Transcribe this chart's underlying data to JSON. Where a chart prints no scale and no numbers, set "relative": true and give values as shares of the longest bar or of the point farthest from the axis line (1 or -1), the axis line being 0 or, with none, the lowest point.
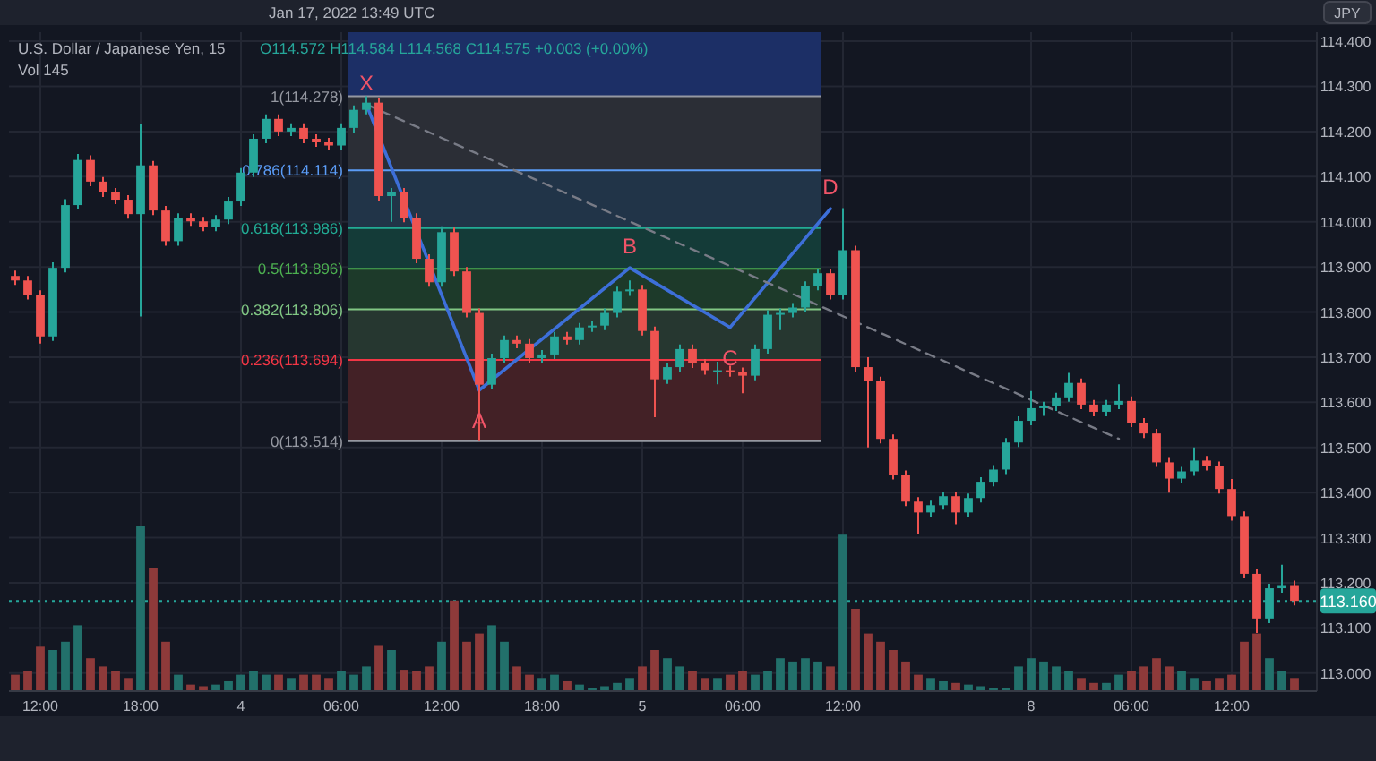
{
  "chart_data": [
    {
      "type": "candlestick",
      "title": "U.S. Dollar / Japanese Yen, 15",
      "subtitle": "O114.572 H114.584 L114.568 C114.575 +0.003 (+0.00%)",
      "categories": [
        null,
        null,
        "12:00",
        null,
        null,
        null,
        null,
        null,
        null,
        null,
        "18:00",
        null,
        null,
        null,
        null,
        null,
        null,
        null,
        "4",
        null,
        null,
        null,
        null,
        null,
        null,
        null,
        "06:00",
        null,
        null,
        null,
        null,
        null,
        null,
        null,
        "12:00",
        null,
        null,
        null,
        null,
        null,
        null,
        null,
        "18:00",
        null,
        null,
        null,
        null,
        null,
        null,
        null,
        "5",
        null,
        null,
        null,
        null,
        null,
        null,
        null,
        "06:00",
        null,
        null,
        null,
        null,
        null,
        null,
        null,
        "12:00",
        null,
        null,
        null,
        null,
        null,
        null,
        null,
        null,
        null,
        null,
        null,
        null,
        null,
        null,
        "8",
        null,
        null,
        null,
        null,
        null,
        null,
        null,
        "06:00",
        null,
        null,
        null,
        null,
        null,
        null,
        null,
        "12:00",
        null,
        null,
        null,
        null,
        null
      ],
      "ohlc": [
        [
          113.88,
          113.892,
          113.86,
          113.87
        ],
        [
          113.87,
          113.88,
          113.828,
          113.838
        ],
        [
          113.838,
          113.848,
          113.73,
          113.746
        ],
        [
          113.746,
          113.91,
          113.736,
          113.898
        ],
        [
          113.898,
          114.05,
          113.888,
          114.037
        ],
        [
          114.037,
          114.15,
          114.027,
          114.137
        ],
        [
          114.137,
          114.147,
          114.079,
          114.089
        ],
        [
          114.089,
          114.099,
          114.055,
          114.065
        ],
        [
          114.065,
          114.075,
          114.039,
          114.049
        ],
        [
          114.049,
          114.059,
          114.007,
          114.017
        ],
        [
          114.017,
          114.216,
          113.79,
          114.125
        ],
        [
          114.125,
          114.135,
          114.015,
          114.025
        ],
        [
          114.025,
          114.035,
          113.947,
          113.957
        ],
        [
          113.957,
          114.019,
          113.947,
          114.009
        ],
        [
          114.009,
          114.019,
          113.991,
          114.001
        ],
        [
          114.001,
          114.011,
          113.979,
          113.989
        ],
        [
          113.989,
          114.015,
          113.979,
          114.005
        ],
        [
          114.005,
          114.055,
          113.995,
          114.045
        ],
        [
          114.045,
          114.119,
          114.035,
          114.109
        ],
        [
          114.109,
          114.194,
          114.099,
          114.184
        ],
        [
          114.184,
          114.238,
          114.174,
          114.228
        ],
        [
          114.228,
          114.238,
          114.19,
          114.2
        ],
        [
          114.2,
          114.218,
          114.19,
          114.208
        ],
        [
          114.208,
          114.218,
          114.174,
          114.184
        ],
        [
          114.184,
          114.194,
          114.166,
          114.176
        ],
        [
          114.176,
          114.186,
          114.159,
          114.169
        ],
        [
          114.169,
          114.218,
          114.159,
          114.208
        ],
        [
          114.208,
          114.258,
          114.198,
          114.248
        ],
        [
          114.248,
          114.278,
          114.238,
          114.264
        ],
        [
          114.264,
          114.274,
          114.047,
          114.057
        ],
        [
          114.057,
          114.075,
          114.0,
          114.065
        ],
        [
          114.065,
          114.075,
          113.999,
          114.009
        ],
        [
          114.009,
          114.019,
          113.908,
          113.918
        ],
        [
          113.918,
          113.928,
          113.856,
          113.866
        ],
        [
          113.866,
          113.99,
          113.856,
          113.977
        ],
        [
          113.977,
          113.987,
          113.88,
          113.89
        ],
        [
          113.89,
          113.9,
          113.788,
          113.798
        ],
        [
          113.798,
          113.808,
          113.514,
          113.639
        ],
        [
          113.639,
          113.708,
          113.629,
          113.698
        ],
        [
          113.698,
          113.748,
          113.688,
          113.738
        ],
        [
          113.738,
          113.748,
          113.72,
          113.73
        ],
        [
          113.73,
          113.74,
          113.688,
          113.698
        ],
        [
          113.698,
          113.716,
          113.688,
          113.706
        ],
        [
          113.706,
          113.756,
          113.696,
          113.746
        ],
        [
          113.746,
          113.756,
          113.728,
          113.738
        ],
        [
          113.738,
          113.776,
          113.728,
          113.766
        ],
        [
          113.766,
          113.78,
          113.756,
          113.77
        ],
        [
          113.77,
          113.808,
          113.76,
          113.798
        ],
        [
          113.798,
          113.856,
          113.788,
          113.846
        ],
        [
          113.846,
          113.87,
          113.836,
          113.85
        ],
        [
          113.85,
          113.86,
          113.748,
          113.758
        ],
        [
          113.758,
          113.768,
          113.567,
          113.651
        ],
        [
          113.651,
          113.688,
          113.641,
          113.678
        ],
        [
          113.678,
          113.728,
          113.668,
          113.718
        ],
        [
          113.718,
          113.728,
          113.676,
          113.686
        ],
        [
          113.686,
          113.696,
          113.661,
          113.671
        ],
        [
          113.671,
          113.69,
          113.64,
          113.671
        ],
        [
          113.671,
          113.681,
          113.657,
          113.667
        ],
        [
          113.667,
          113.677,
          113.62,
          113.659
        ],
        [
          113.659,
          113.728,
          113.649,
          113.718
        ],
        [
          113.718,
          113.804,
          113.708,
          113.794
        ],
        [
          113.794,
          113.808,
          113.76,
          113.798
        ],
        [
          113.798,
          113.82,
          113.788,
          113.81
        ],
        [
          113.81,
          113.868,
          113.8,
          113.858
        ],
        [
          113.858,
          113.896,
          113.848,
          113.886
        ],
        [
          113.886,
          113.896,
          113.828,
          113.838
        ],
        [
          113.838,
          114.03,
          113.828,
          113.937
        ],
        [
          113.937,
          113.947,
          113.668,
          113.678
        ],
        [
          113.678,
          113.7,
          113.5,
          113.647
        ],
        [
          113.647,
          113.657,
          113.509,
          113.519
        ],
        [
          113.519,
          113.529,
          113.429,
          113.439
        ],
        [
          113.439,
          113.449,
          113.37,
          113.38
        ],
        [
          113.38,
          113.39,
          113.308,
          113.356
        ],
        [
          113.356,
          113.382,
          113.346,
          113.372
        ],
        [
          113.372,
          113.402,
          113.362,
          113.392
        ],
        [
          113.392,
          113.402,
          113.33,
          113.356
        ],
        [
          113.356,
          113.398,
          113.346,
          113.388
        ],
        [
          113.388,
          113.434,
          113.378,
          113.424
        ],
        [
          113.424,
          113.461,
          113.414,
          113.451
        ],
        [
          113.451,
          113.521,
          113.441,
          113.511
        ],
        [
          113.511,
          113.569,
          113.501,
          113.559
        ],
        [
          113.559,
          113.625,
          113.549,
          113.587
        ],
        [
          113.587,
          113.601,
          113.57,
          113.591
        ],
        [
          113.591,
          113.621,
          113.581,
          113.611
        ],
        [
          113.611,
          113.665,
          113.601,
          113.643
        ],
        [
          113.643,
          113.653,
          113.585,
          113.595
        ],
        [
          113.595,
          113.605,
          113.569,
          113.579
        ],
        [
          113.579,
          113.605,
          113.569,
          113.595
        ],
        [
          113.595,
          113.64,
          113.585,
          113.603
        ],
        [
          113.603,
          113.613,
          113.545,
          113.555
        ],
        [
          113.555,
          113.565,
          113.521,
          113.531
        ],
        [
          113.531,
          113.541,
          113.457,
          113.467
        ],
        [
          113.467,
          113.477,
          113.4,
          113.431
        ],
        [
          113.431,
          113.457,
          113.421,
          113.447
        ],
        [
          113.447,
          113.5,
          113.437,
          113.471
        ],
        [
          113.471,
          113.481,
          113.449,
          113.459
        ],
        [
          113.459,
          113.469,
          113.398,
          113.408
        ],
        [
          113.408,
          113.43,
          113.338,
          113.348
        ],
        [
          113.348,
          113.358,
          113.21,
          113.22
        ],
        [
          113.22,
          113.23,
          113.089,
          113.121
        ],
        [
          113.121,
          113.198,
          113.111,
          113.188
        ],
        [
          113.188,
          113.24,
          113.178,
          113.195
        ],
        [
          113.195,
          113.205,
          113.15,
          113.16
        ]
      ],
      "colors": [
        "#ef5350",
        "#ef5350",
        "#ef5350",
        "#26a69a",
        "#26a69a",
        "#26a69a",
        "#ef5350",
        "#ef5350",
        "#ef5350",
        "#ef5350",
        "#26a69a",
        "#ef5350",
        "#ef5350",
        "#26a69a",
        "#ef5350",
        "#ef5350",
        "#26a69a",
        "#26a69a",
        "#26a69a",
        "#26a69a",
        "#26a69a",
        "#ef5350",
        "#26a69a",
        "#ef5350",
        "#ef5350",
        "#ef5350",
        "#26a69a",
        "#26a69a",
        "#26a69a",
        "#ef5350",
        "#26a69a",
        "#ef5350",
        "#ef5350",
        "#ef5350",
        "#26a69a",
        "#ef5350",
        "#ef5350",
        "#ef5350",
        "#26a69a",
        "#26a69a",
        "#ef5350",
        "#ef5350",
        "#26a69a",
        "#26a69a",
        "#ef5350",
        "#26a69a",
        "#26a69a",
        "#26a69a",
        "#26a69a",
        "#26a69a",
        "#ef5350",
        "#ef5350",
        "#26a69a",
        "#26a69a",
        "#ef5350",
        "#ef5350",
        "#26a69a",
        "#ef5350",
        "#ef5350",
        "#26a69a",
        "#26a69a",
        "#26a69a",
        "#26a69a",
        "#26a69a",
        "#26a69a",
        "#ef5350",
        "#26a69a",
        "#ef5350",
        "#ef5350",
        "#ef5350",
        "#ef5350",
        "#ef5350",
        "#ef5350",
        "#26a69a",
        "#26a69a",
        "#ef5350",
        "#26a69a",
        "#26a69a",
        "#26a69a",
        "#26a69a",
        "#26a69a",
        "#26a69a",
        "#26a69a",
        "#26a69a",
        "#26a69a",
        "#ef5350",
        "#ef5350",
        "#26a69a",
        "#26a69a",
        "#ef5350",
        "#ef5350",
        "#ef5350",
        "#ef5350",
        "#26a69a",
        "#26a69a",
        "#ef5350",
        "#ef5350",
        "#ef5350",
        "#ef5350",
        "#ef5350",
        "#26a69a",
        "#26a69a",
        "#ef5350"
      ],
      "ylim": [
        112.96,
        114.42
      ],
      "yticks": [
        {
          "value": 113,
          "label": "113.000"
        },
        {
          "value": 113.1,
          "label": "113.100"
        },
        {
          "value": 113.2,
          "label": "113.200"
        },
        {
          "value": 113.3,
          "label": "113.300"
        },
        {
          "value": 113.4,
          "label": "113.400"
        },
        {
          "value": 113.5,
          "label": "113.500"
        },
        {
          "value": 113.6,
          "label": "113.600"
        },
        {
          "value": 113.7,
          "label": "113.700"
        },
        {
          "value": 113.8,
          "label": "113.800"
        },
        {
          "value": 113.9,
          "label": "113.900"
        },
        {
          "value": 114,
          "label": "114.000"
        },
        {
          "value": 114.1,
          "label": "114.100"
        },
        {
          "value": 114.2,
          "label": "114.200"
        },
        {
          "value": 114.3,
          "label": "114.300"
        },
        {
          "value": 114.4,
          "label": "114.400"
        }
      ],
      "grid": true,
      "series": [
        {
          "type": "line",
          "color": "#3d6fd9",
          "line_style": "solid",
          "values": [
            null,
            null,
            null,
            null,
            null,
            null,
            null,
            null,
            null,
            null,
            null,
            null,
            null,
            null,
            null,
            null,
            null,
            null,
            null,
            null,
            null,
            null,
            null,
            null,
            null,
            null,
            null,
            null,
            114.26,
            null,
            null,
            null,
            null,
            null,
            null,
            null,
            null,
            113.627,
            null,
            null,
            null,
            null,
            null,
            null,
            null,
            null,
            null,
            null,
            null,
            113.898,
            null,
            null,
            null,
            null,
            null,
            null,
            null,
            113.766,
            null,
            null,
            null,
            null,
            null,
            null,
            null,
            114.029,
            null,
            null,
            null,
            null,
            null,
            null,
            null,
            null,
            null,
            null,
            null,
            null,
            null,
            null,
            null,
            null,
            null,
            null,
            null,
            null,
            null,
            null,
            null,
            null,
            null,
            null,
            null,
            null,
            null,
            null,
            null,
            null,
            null,
            null,
            null,
            null,
            null
          ]
        },
        {
          "type": "line",
          "color": "#787b86",
          "line_style": "dashed",
          "values": [
            null,
            null,
            null,
            null,
            null,
            null,
            null,
            null,
            null,
            null,
            null,
            null,
            null,
            null,
            null,
            null,
            null,
            null,
            null,
            null,
            null,
            null,
            null,
            null,
            null,
            null,
            null,
            null,
            114.26,
            null,
            null,
            null,
            null,
            null,
            null,
            null,
            null,
            null,
            null,
            null,
            null,
            null,
            null,
            null,
            null,
            null,
            null,
            null,
            null,
            null,
            null,
            null,
            null,
            null,
            null,
            null,
            null,
            null,
            null,
            null,
            null,
            null,
            null,
            null,
            null,
            null,
            null,
            null,
            null,
            null,
            null,
            null,
            null,
            null,
            null,
            null,
            null,
            null,
            null,
            null,
            null,
            null,
            null,
            null,
            null,
            null,
            null,
            null,
            113.519,
            null,
            null,
            null,
            null,
            null,
            null,
            null,
            null,
            null,
            null,
            null,
            null,
            null,
            null
          ]
        }
      ],
      "bands": [
        {
          "axis": "y",
          "from": 114.278,
          "to": 114.42,
          "color": "#1c2f66"
        },
        {
          "axis": "y",
          "from": 114.114,
          "to": 114.278,
          "color": "#2b2e36"
        },
        {
          "axis": "y",
          "from": 113.986,
          "to": 114.114,
          "color": "#213448"
        },
        {
          "axis": "y",
          "from": 113.896,
          "to": 113.986,
          "color": "#143b38"
        },
        {
          "axis": "y",
          "from": 113.806,
          "to": 113.896,
          "color": "#1d3a2a"
        },
        {
          "axis": "y",
          "from": 113.694,
          "to": 113.806,
          "color": "#263730"
        },
        {
          "axis": "y",
          "from": 113.514,
          "to": 113.694,
          "color": "#432126"
        }
      ],
      "ref_lines": [
        {
          "axis": "y",
          "value": 114.278,
          "label": "1(114.278)",
          "color": "#9598a1",
          "line_style": "solid"
        },
        {
          "axis": "y",
          "value": 114.114,
          "label": "0.786(114.114)",
          "color": "#5b9cf6",
          "line_style": "solid"
        },
        {
          "axis": "y",
          "value": 113.986,
          "label": "0.618(113.986)",
          "color": "#22ab94",
          "line_style": "solid"
        },
        {
          "axis": "y",
          "value": 113.896,
          "label": "0.5(113.896)",
          "color": "#4caf50",
          "line_style": "solid"
        },
        {
          "axis": "y",
          "value": 113.806,
          "label": "0.382(113.806)",
          "color": "#81c784",
          "line_style": "solid"
        },
        {
          "axis": "y",
          "value": 113.694,
          "label": "0.236(113.694)",
          "color": "#f23645",
          "line_style": "solid"
        },
        {
          "axis": "y",
          "value": 113.514,
          "label": "0(113.514)",
          "color": "#9598a1",
          "line_style": "solid"
        },
        {
          "axis": "y",
          "value": 113.16,
          "label": "113.160",
          "color": "#26a69a",
          "line_style": "dotted"
        }
      ],
      "annotations": [
        "Jan 17, 2022 13:49 UTC",
        "JPY",
        {
          "text": "X",
          "y": 114.26
        },
        {
          "text": "A",
          "y": 113.627
        },
        {
          "text": "B",
          "y": 113.898
        },
        {
          "text": "C",
          "y": 113.766
        },
        {
          "text": "D",
          "y": 114.029
        }
      ]
    },
    {
      "type": "bar",
      "relative": true,
      "annotations": [
        "Vol 145"
      ],
      "categories": [
        null,
        null,
        null,
        null,
        null,
        null,
        null,
        null,
        null,
        null,
        null,
        null,
        null,
        null,
        null,
        null,
        null,
        null,
        null,
        null,
        null,
        null,
        null,
        null,
        null,
        null,
        null,
        null,
        null,
        null,
        null,
        null,
        null,
        null,
        null,
        null,
        null,
        null,
        null,
        null,
        null,
        null,
        null,
        null,
        null,
        null,
        null,
        null,
        null,
        null,
        null,
        null,
        null,
        null,
        null,
        null,
        null,
        null,
        null,
        null,
        null,
        null,
        null,
        null,
        null,
        null,
        null,
        null,
        null,
        null,
        null,
        null,
        null,
        null,
        null,
        null,
        null,
        null,
        null,
        null,
        null,
        null,
        null,
        null,
        null,
        null,
        null,
        null,
        null,
        null,
        null,
        null,
        null,
        null,
        null,
        null,
        null,
        null,
        null,
        null,
        null,
        null,
        null
      ],
      "values": [
        0.1,
        0.12,
        0.27,
        0.25,
        0.3,
        0.4,
        0.2,
        0.15,
        0.12,
        0.08,
        1,
        0.75,
        0.3,
        0.1,
        0.04,
        0.03,
        0.04,
        0.06,
        0.1,
        0.12,
        0.1,
        0.1,
        0.08,
        0.1,
        0.1,
        0.08,
        0.12,
        0.1,
        0.15,
        0.28,
        0.25,
        0.13,
        0.12,
        0.15,
        0.3,
        0.55,
        0.3,
        0.35,
        0.4,
        0.3,
        0.15,
        0.1,
        0.08,
        0.1,
        0.06,
        0.04,
        0.02,
        0.03,
        0.05,
        0.08,
        0.15,
        0.25,
        0.2,
        0.15,
        0.12,
        0.08,
        0.08,
        0.1,
        0.12,
        0.1,
        0.12,
        0.2,
        0.18,
        0.2,
        0.18,
        0.15,
        0.95,
        0.5,
        0.35,
        0.3,
        0.25,
        0.18,
        0.1,
        0.08,
        0.06,
        0.05,
        0.04,
        0.03,
        0.02,
        0.02,
        0.15,
        0.2,
        0.18,
        0.15,
        0.12,
        0.08,
        0.05,
        0.05,
        0.1,
        0.12,
        0.15,
        0.2,
        0.15,
        0.12,
        0.08,
        0.06,
        0.08,
        0.1,
        0.3,
        0.35,
        0.2,
        0.12,
        0.08
      ],
      "colors": [
        "#8e3a3a",
        "#8e3a3a",
        "#8e3a3a",
        "#22706b",
        "#22706b",
        "#22706b",
        "#8e3a3a",
        "#8e3a3a",
        "#8e3a3a",
        "#8e3a3a",
        "#22706b",
        "#8e3a3a",
        "#8e3a3a",
        "#22706b",
        "#8e3a3a",
        "#8e3a3a",
        "#22706b",
        "#22706b",
        "#22706b",
        "#22706b",
        "#22706b",
        "#8e3a3a",
        "#22706b",
        "#8e3a3a",
        "#8e3a3a",
        "#8e3a3a",
        "#22706b",
        "#22706b",
        "#22706b",
        "#8e3a3a",
        "#22706b",
        "#8e3a3a",
        "#8e3a3a",
        "#8e3a3a",
        "#22706b",
        "#8e3a3a",
        "#8e3a3a",
        "#8e3a3a",
        "#22706b",
        "#22706b",
        "#8e3a3a",
        "#8e3a3a",
        "#22706b",
        "#22706b",
        "#8e3a3a",
        "#22706b",
        "#22706b",
        "#22706b",
        "#22706b",
        "#22706b",
        "#8e3a3a",
        "#8e3a3a",
        "#22706b",
        "#22706b",
        "#8e3a3a",
        "#8e3a3a",
        "#22706b",
        "#8e3a3a",
        "#8e3a3a",
        "#22706b",
        "#22706b",
        "#22706b",
        "#22706b",
        "#22706b",
        "#22706b",
        "#8e3a3a",
        "#22706b",
        "#8e3a3a",
        "#8e3a3a",
        "#8e3a3a",
        "#8e3a3a",
        "#8e3a3a",
        "#8e3a3a",
        "#22706b",
        "#22706b",
        "#8e3a3a",
        "#22706b",
        "#22706b",
        "#22706b",
        "#22706b",
        "#22706b",
        "#22706b",
        "#22706b",
        "#22706b",
        "#22706b",
        "#8e3a3a",
        "#8e3a3a",
        "#22706b",
        "#22706b",
        "#8e3a3a",
        "#8e3a3a",
        "#8e3a3a",
        "#8e3a3a",
        "#22706b",
        "#22706b",
        "#8e3a3a",
        "#8e3a3a",
        "#8e3a3a",
        "#8e3a3a",
        "#8e3a3a",
        "#22706b",
        "#22706b",
        "#8e3a3a"
      ]
    }
  ]
}
